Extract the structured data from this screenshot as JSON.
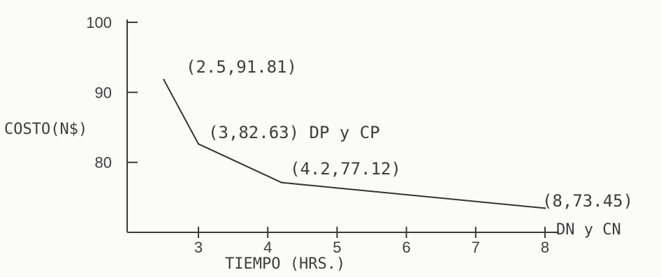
{
  "chart_data": {
    "type": "line",
    "title": "",
    "xlabel": "TIEMPO (HRS.)",
    "ylabel": "COSTO(N$)",
    "xlim": [
      2,
      8
    ],
    "ylim": [
      70,
      100
    ],
    "x_ticks": [
      3,
      4,
      5,
      6,
      7,
      8
    ],
    "y_ticks": [
      80,
      90,
      100
    ],
    "grid": false,
    "series": [
      {
        "x": [
          2.5,
          3,
          4.2,
          8
        ],
        "y": [
          91.81,
          82.63,
          77.12,
          73.45
        ]
      }
    ],
    "annotations": [
      {
        "text": "(2.5,91.81)"
      },
      {
        "text": "(3,82.63) DP y CP"
      },
      {
        "text": "(4.2,77.12)"
      },
      {
        "text": "(8,73.45)"
      },
      {
        "text": "DN y CN"
      }
    ]
  }
}
